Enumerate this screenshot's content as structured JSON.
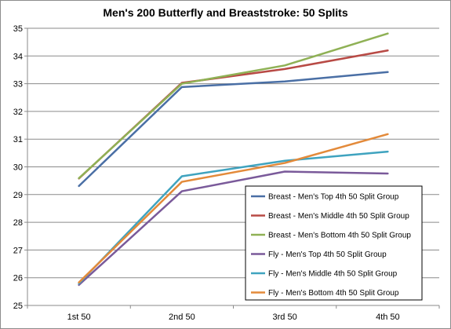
{
  "chart_data": {
    "type": "line",
    "title": "Men's 200 Butterfly and Breaststroke: 50 Splits",
    "xlabel": "",
    "ylabel": "",
    "categories": [
      "1st 50",
      "2nd 50",
      "3rd 50",
      "4th 50"
    ],
    "ylim": [
      25,
      35
    ],
    "yticks": [
      25,
      26,
      27,
      28,
      29,
      30,
      31,
      32,
      33,
      34,
      35
    ],
    "grid": "horizontal",
    "legend_placement": "bottom-right",
    "series": [
      {
        "name": "Breast - Men's Top 4th 50 Split Group",
        "color": "#4a6fa5",
        "values": [
          29.31,
          32.88,
          33.08,
          33.42
        ]
      },
      {
        "name": "Breast - Men's Middle 4th 50 Split Group",
        "color": "#b84a45",
        "values": [
          29.58,
          33.03,
          33.53,
          34.2
        ]
      },
      {
        "name": "Breast - Men's Bottom 4th 50 Split Group",
        "color": "#8fb155",
        "values": [
          29.59,
          33.0,
          33.66,
          34.81
        ]
      },
      {
        "name": "Fly - Men's Top 4th 50 Split Group",
        "color": "#7a5a9a",
        "values": [
          25.74,
          29.12,
          29.83,
          29.76
        ]
      },
      {
        "name": "Fly - Men's Middle 4th 50 Split Group",
        "color": "#3fa3bf",
        "values": [
          25.79,
          29.66,
          30.22,
          30.55
        ]
      },
      {
        "name": "Fly - Men's Bottom 4th 50 Split Group",
        "color": "#e38a3a",
        "values": [
          25.83,
          29.46,
          30.14,
          31.18
        ]
      }
    ]
  }
}
